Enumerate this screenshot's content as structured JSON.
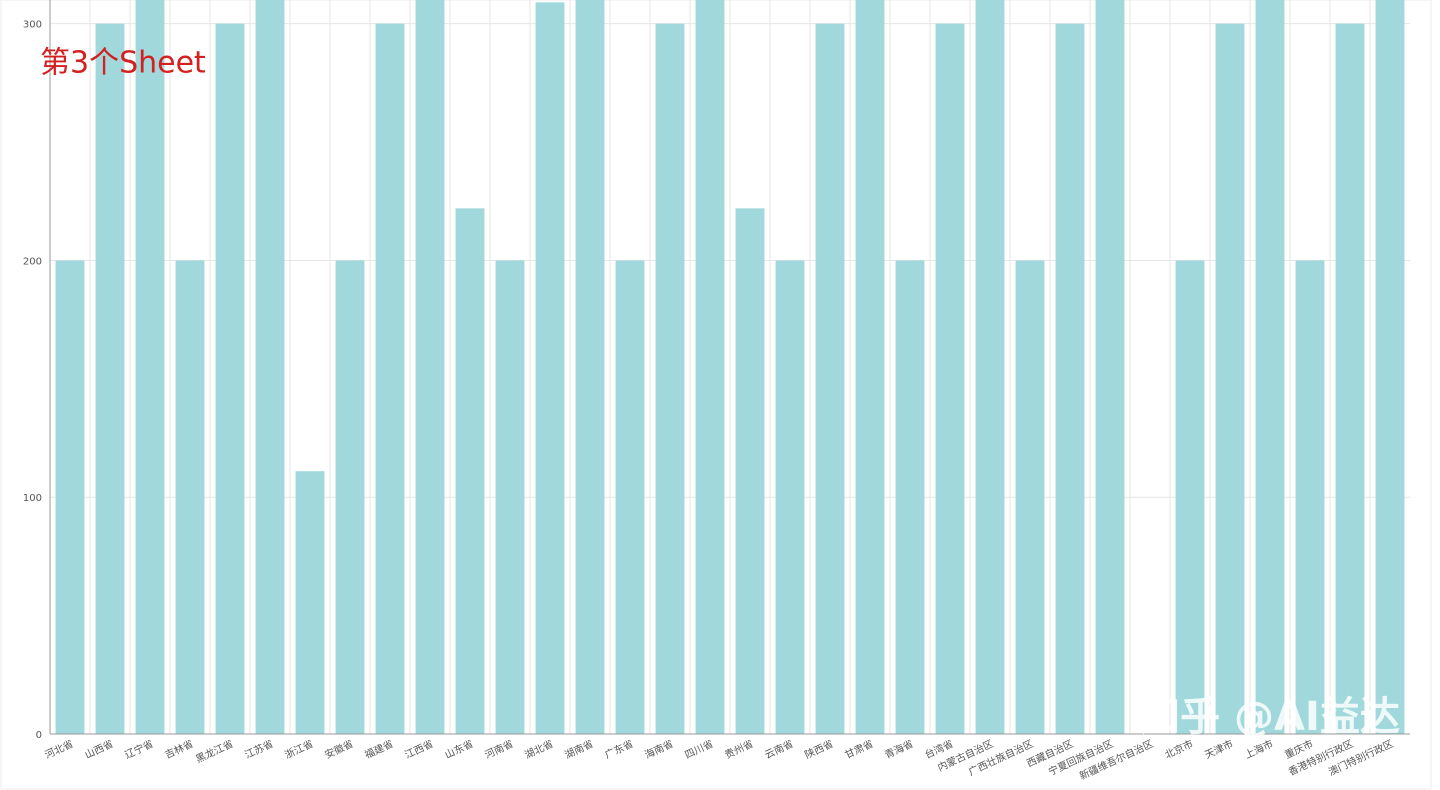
{
  "chart_data": {
    "type": "bar",
    "annotation": "第3个Sheet",
    "watermark": "知乎 @AI益达",
    "categories": [
      "河北省",
      "山西省",
      "辽宁省",
      "吉林省",
      "黑龙江省",
      "江苏省",
      "浙江省",
      "安徽省",
      "福建省",
      "江西省",
      "山东省",
      "河南省",
      "湖北省",
      "湖南省",
      "广东省",
      "海南省",
      "四川省",
      "贵州省",
      "云南省",
      "陕西省",
      "甘肃省",
      "青海省",
      "台湾省",
      "内蒙古自治区",
      "广西壮族自治区",
      "西藏自治区",
      "宁夏回族自治区",
      "新疆维吾尔自治区",
      "北京市",
      "天津市",
      "上海市",
      "重庆市",
      "香港特别行政区",
      "澳门特别行政区"
    ],
    "values": [
      200,
      300,
      320,
      200,
      300,
      320,
      111,
      200,
      300,
      320,
      222,
      200,
      309,
      320,
      200,
      300,
      320,
      222,
      200,
      300,
      320,
      200,
      300,
      320,
      200,
      300,
      320,
      0,
      200,
      300,
      320,
      200,
      300,
      320
    ],
    "color": "#a0d8db",
    "ylim": [
      0,
      310
    ],
    "yticks": [
      0,
      100,
      200,
      300
    ],
    "grid": true
  }
}
